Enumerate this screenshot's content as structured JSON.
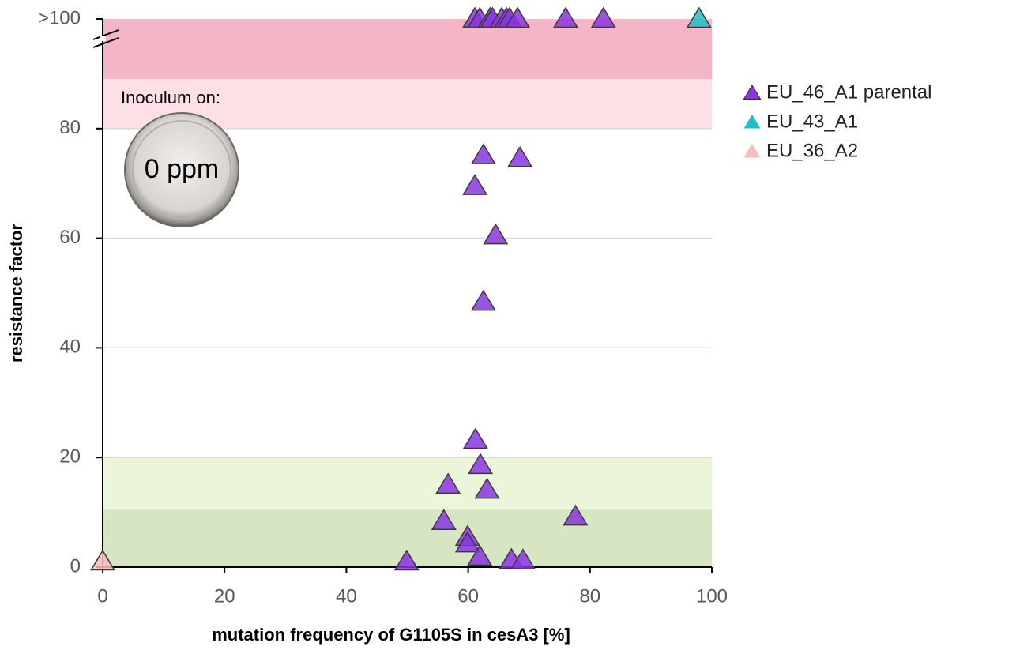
{
  "chart_data": {
    "type": "scatter",
    "xlabel": "mutation frequency of G1105S in cesA3 [%]",
    "ylabel": "resistance factor",
    "xlim": [
      0,
      100
    ],
    "ylim": [
      0,
      100
    ],
    "xticks": [
      0,
      20,
      40,
      60,
      80,
      100
    ],
    "yticks": [
      0,
      20,
      40,
      60,
      80,
      {
        "value": 100,
        "label": ">100"
      }
    ],
    "grid": true,
    "legend": "right",
    "annotations": [
      "Inoculum on:",
      "0 ppm"
    ],
    "bands": [
      {
        "from": 89,
        "to": 100,
        "color": "#f4b6c6"
      },
      {
        "from": 80,
        "to": 89,
        "color": "#fde0e6"
      },
      {
        "from": 0,
        "to": 20,
        "color": "#eaf5d9"
      },
      {
        "from": 0,
        "to": 10.5,
        "color": "#d8e5c2"
      }
    ],
    "series": [
      {
        "name": "EU_46_A1 parental",
        "color": "#8a35e0",
        "x": [
          61.1,
          61.9,
          63.6,
          64.0,
          65.5,
          66.3,
          66.8,
          68.1,
          76.0,
          82.2,
          62.5,
          68.5,
          61.1,
          64.5,
          62.5,
          61.2,
          62.0,
          56.7,
          63.1,
          56.0,
          77.6,
          59.9,
          59.9,
          61.9,
          67.1,
          69.0,
          49.9
        ],
        "values": [
          100,
          100,
          100,
          100,
          100,
          100,
          100,
          100,
          100,
          100,
          75.1,
          74.6,
          69.5,
          60.5,
          48.4,
          23.2,
          18.6,
          15.0,
          14.1,
          8.4,
          9.2,
          5.5,
          4.3,
          1.9,
          1.3,
          1.2,
          1.0
        ]
      },
      {
        "name": "EU_43_A1",
        "color": "#1fc0c8",
        "x": [
          97.9
        ],
        "values": [
          100
        ]
      },
      {
        "name": "EU_36_A2",
        "color": "#f7bcbc",
        "x": [
          0
        ],
        "values": [
          1
        ]
      }
    ]
  }
}
